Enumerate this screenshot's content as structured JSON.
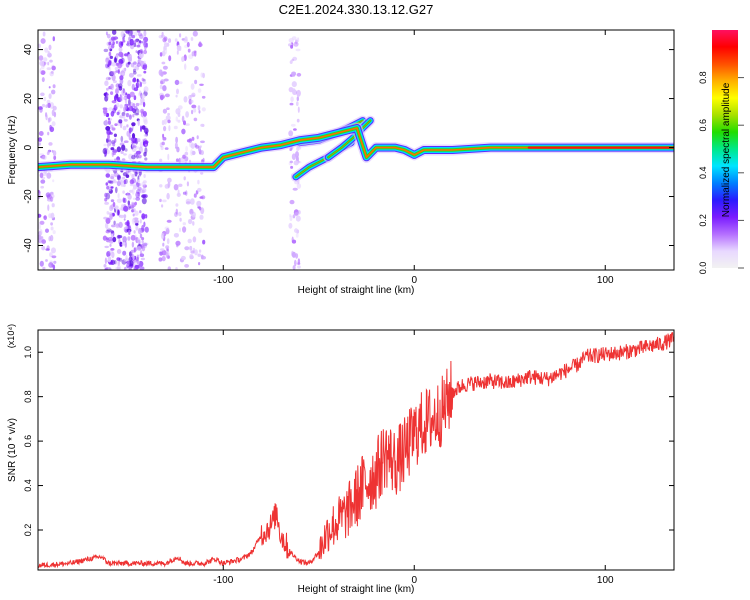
{
  "title": "C2E1.2024.330.13.12.G27",
  "chart_data": [
    {
      "type": "heatmap",
      "xlabel": "Height of straight line (km)",
      "ylabel": "Frequency (Hz)",
      "xlim": [
        -197,
        136
      ],
      "ylim": [
        -50,
        48
      ],
      "x_ticks": [
        -100,
        0,
        100
      ],
      "y_ticks": [
        -40,
        -20,
        0,
        20,
        40
      ],
      "grid": false,
      "colorbar": {
        "label": "Normalized spectral amplitude",
        "range": [
          0,
          1
        ],
        "ticks": [
          "0.0",
          "0.2",
          "0.4",
          "0.6",
          "0.8"
        ],
        "colors": [
          "#f2f2f2",
          "#e8d8ff",
          "#b46eff",
          "#7a1cff",
          "#2a1bff",
          "#0080ff",
          "#00e5ff",
          "#00e88a",
          "#22dd00",
          "#a8e000",
          "#ffff00",
          "#ffb000",
          "#ff5000",
          "#ff0000",
          "#ff1060"
        ]
      },
      "ridge": {
        "x": [
          -197,
          -180,
          -160,
          -140,
          -120,
          -105,
          -100,
          -90,
          -80,
          -70,
          -60,
          -50,
          -40,
          -30,
          -25,
          -20,
          -10,
          -5,
          0,
          5,
          10,
          20,
          40,
          60,
          80,
          100,
          120,
          136
        ],
        "y": [
          -8,
          -7,
          -7,
          -8,
          -8,
          -8,
          -4,
          -2,
          0,
          1,
          3,
          4,
          6,
          8,
          -4,
          0,
          0,
          -1,
          -3,
          -1,
          -1,
          -1,
          0,
          0,
          0,
          0,
          0,
          0
        ]
      },
      "branches": [
        {
          "x": [
            -62,
            -55,
            -45,
            -38,
            -33
          ],
          "y": [
            -12,
            -8,
            -4,
            0,
            2
          ]
        },
        {
          "x": [
            -60,
            -50,
            -40,
            -32,
            -27
          ],
          "y": [
            2,
            3,
            6,
            9,
            11
          ]
        },
        {
          "x": [
            -45,
            -38,
            -32,
            -27,
            -23
          ],
          "y": [
            -4,
            0,
            4,
            8,
            11
          ]
        }
      ],
      "scatter_bands": [
        {
          "x": [
            -197,
            -188
          ],
          "density": 0.35
        },
        {
          "x": [
            -162,
            -140
          ],
          "density": 1.0
        },
        {
          "x": [
            -133,
            -128
          ],
          "density": 0.3
        },
        {
          "x": [
            -125,
            -110
          ],
          "density": 0.3
        },
        {
          "x": [
            -65,
            -60
          ],
          "density": 0.25
        }
      ]
    },
    {
      "type": "line",
      "xlabel": "Height of straight line (km)",
      "ylabel": "SNR (10 * v/v)",
      "y_multiplier": "(x10⁴)",
      "xlim": [
        -197,
        136
      ],
      "ylim": [
        0.02,
        1.1
      ],
      "x_ticks": [
        -100,
        0,
        100
      ],
      "y_ticks": [
        0.2,
        0.4,
        0.6,
        0.8,
        1.0
      ],
      "color": "#ee3333",
      "grid": false,
      "x": [
        -197,
        -180,
        -170,
        -164,
        -160,
        -150,
        -140,
        -130,
        -124,
        -120,
        -110,
        -104,
        -100,
        -95,
        -90,
        -85,
        -80,
        -75,
        -72,
        -70,
        -65,
        -60,
        -55,
        -50,
        -45,
        -40,
        -35,
        -30,
        -25,
        -20,
        -15,
        -10,
        -5,
        0,
        5,
        10,
        15,
        20,
        25,
        30,
        40,
        50,
        60,
        70,
        80,
        85,
        90,
        100,
        110,
        120,
        130,
        136
      ],
      "y": [
        0.04,
        0.05,
        0.07,
        0.08,
        0.05,
        0.05,
        0.05,
        0.05,
        0.08,
        0.05,
        0.05,
        0.07,
        0.05,
        0.06,
        0.07,
        0.1,
        0.18,
        0.22,
        0.28,
        0.18,
        0.1,
        0.06,
        0.05,
        0.1,
        0.2,
        0.24,
        0.28,
        0.35,
        0.42,
        0.45,
        0.55,
        0.5,
        0.55,
        0.63,
        0.68,
        0.7,
        0.74,
        0.82,
        0.85,
        0.86,
        0.87,
        0.86,
        0.89,
        0.88,
        0.92,
        0.94,
        0.98,
        0.99,
        1.0,
        1.02,
        1.04,
        1.06
      ]
    }
  ]
}
